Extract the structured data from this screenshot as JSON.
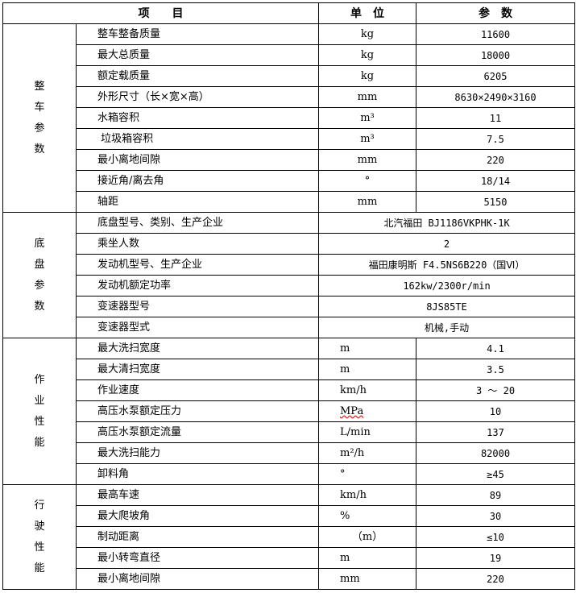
{
  "header": {
    "item": "项　　目",
    "unit": "单　位",
    "param": "参　数"
  },
  "sections": [
    {
      "label": "整车参数",
      "rows": [
        {
          "item": "整车整备质量",
          "unit": "kg",
          "value": "11600"
        },
        {
          "item": "最大总质量",
          "unit": "kg",
          "value": "18000"
        },
        {
          "item": "额定载质量",
          "unit": "kg",
          "value": "6205"
        },
        {
          "item": "外形尺寸（长×宽×高）",
          "unit": "mm",
          "value": "8630×2490×3160"
        },
        {
          "item": "水箱容积",
          "unit": "m³",
          "value": "11"
        },
        {
          "item": " 垃圾箱容积",
          "unit": "m³",
          "value": "7.5"
        },
        {
          "item": "最小离地间隙",
          "unit": "mm",
          "value": "220"
        },
        {
          "item": "接近角/离去角",
          "unit": "°",
          "value": "18/14"
        },
        {
          "item": "轴距",
          "unit": "mm",
          "value": "5150"
        }
      ]
    },
    {
      "label": "底盘参数",
      "rows": [
        {
          "item": "底盘型号、类别、生产企业",
          "value": "北汽福田 BJ1186VKPHK-1K"
        },
        {
          "item": "乘坐人数",
          "value": "2"
        },
        {
          "item": "发动机型号、生产企业",
          "value": "福田康明斯 F4.5NS6B220（国Ⅵ）"
        },
        {
          "item": "发动机额定功率",
          "value": "162kw/2300r/min"
        },
        {
          "item": "变速器型号",
          "value": "8JS85TE"
        },
        {
          "item": "变速器型式",
          "value": "机械,手动"
        }
      ]
    },
    {
      "label": "作业性能",
      "rows": [
        {
          "item": "最大洗扫宽度",
          "unit": "m",
          "value": "4.1"
        },
        {
          "item": "最大清扫宽度",
          "unit": "m",
          "value": "3.5"
        },
        {
          "item": "作业速度",
          "unit": "km/h",
          "value": "3 ～ 20"
        },
        {
          "item": "高压水泵额定压力",
          "unit": "MPa",
          "value": "10"
        },
        {
          "item": "高压水泵额定流量",
          "unit": "L/min",
          "value": "137"
        },
        {
          "item": "最大洗扫能力",
          "unit": "m²/h",
          "value": "82000"
        },
        {
          "item": "卸料角",
          "unit": "°",
          "value": "≥45"
        }
      ]
    },
    {
      "label": "行驶性能",
      "rows": [
        {
          "item": "最高车速",
          "unit": "km/h",
          "value": "89"
        },
        {
          "item": "最大爬坡角",
          "unit": "%",
          "value": "30"
        },
        {
          "item": "制动距离",
          "unit": "（m）",
          "value": "≤10"
        },
        {
          "item": "最小转弯直径",
          "unit": "m",
          "value": "19"
        },
        {
          "item": "最小离地间隙",
          "unit": "mm",
          "value": "220"
        }
      ]
    }
  ]
}
